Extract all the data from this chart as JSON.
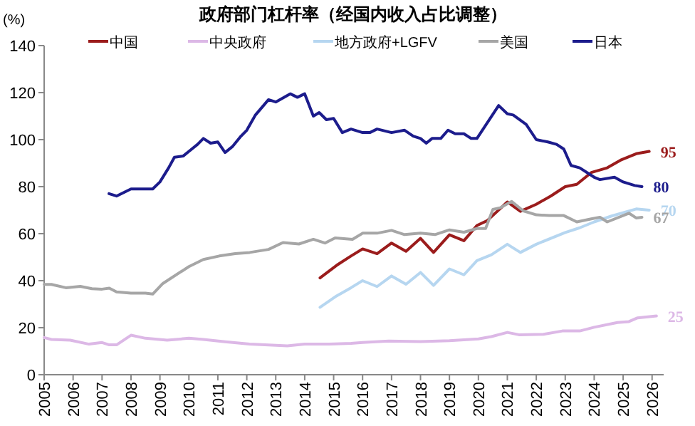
{
  "chart_data": {
    "type": "line",
    "title": "政府部门杠杆率（经国内收入占比调整）",
    "ylabel": "(%)",
    "xlim": [
      2005,
      2026.4
    ],
    "xticks": [
      2005,
      2006,
      2007,
      2008,
      2009,
      2010,
      2011,
      2012,
      2013,
      2014,
      2015,
      2016,
      2017,
      2018,
      2019,
      2020,
      2021,
      2022,
      2023,
      2024,
      2025,
      2026
    ],
    "ylim": [
      0,
      140
    ],
    "yticks": [
      0,
      20,
      40,
      60,
      80,
      100,
      120,
      140
    ],
    "grid": false,
    "legend": "top",
    "marker": "none",
    "line_style": "solid",
    "series": [
      {
        "name": "中国",
        "color": "#9b1c1c",
        "x": [
          2014.53,
          2015.1,
          2015.6,
          2016,
          2016.5,
          2017,
          2017.5,
          2018,
          2018.45,
          2019,
          2019.5,
          2019.95,
          2020.3,
          2021,
          2021.45,
          2022,
          2022.5,
          2023,
          2023.4,
          2023.9,
          2024.45,
          2024.95,
          2025.45,
          2025.9
        ],
        "values": [
          41.2,
          46.5,
          50.5,
          53.5,
          51.5,
          56,
          52.5,
          58,
          52,
          59.5,
          57,
          63.5,
          65.5,
          73.5,
          69.5,
          72.5,
          76,
          80,
          81,
          86,
          88,
          91.5,
          94,
          95
        ],
        "value_labels": [
          null,
          null,
          null,
          null,
          null,
          null,
          null,
          null,
          null,
          null,
          null,
          null,
          null,
          null,
          null,
          null,
          null,
          null,
          null,
          null,
          null,
          null,
          null,
          "95"
        ]
      },
      {
        "name": "中央政府",
        "color": "#dcb8e6",
        "x": [
          2005,
          2005.25,
          2005.9,
          2006.55,
          2007,
          2007.25,
          2007.5,
          2008,
          2008.5,
          2009.25,
          2010,
          2010.5,
          2011.25,
          2012.1,
          2013.4,
          2014,
          2014.85,
          2015.6,
          2016,
          2016.9,
          2018,
          2019,
          2020,
          2020.45,
          2021,
          2021.4,
          2022.25,
          2022.9,
          2023.5,
          2024,
          2024.8,
          2025.2,
          2025.5,
          2026.15
        ],
        "values": [
          15.8,
          15,
          14.7,
          13,
          13.7,
          12.7,
          12.7,
          16.8,
          15.5,
          14.7,
          15.5,
          15,
          14,
          13,
          12.3,
          13,
          13,
          13.3,
          13.7,
          14.3,
          14.1,
          14.5,
          15.2,
          16.2,
          18,
          17,
          17.2,
          18.6,
          18.6,
          20.2,
          22.2,
          22.6,
          24.2,
          25
        ],
        "value_labels": [
          null,
          null,
          null,
          null,
          null,
          null,
          null,
          null,
          null,
          null,
          null,
          null,
          null,
          null,
          null,
          null,
          null,
          null,
          null,
          null,
          null,
          null,
          null,
          null,
          null,
          null,
          null,
          null,
          null,
          null,
          null,
          null,
          null,
          "25"
        ]
      },
      {
        "name": "地方政府+LGFV",
        "color": "#b6d6f0",
        "x": [
          2014.53,
          2015.1,
          2015.6,
          2016,
          2016.5,
          2017,
          2017.5,
          2018,
          2018.45,
          2019,
          2019.5,
          2019.95,
          2020.45,
          2021,
          2021.45,
          2022,
          2023,
          2023.5,
          2024,
          2024.6,
          2025.45,
          2025.9
        ],
        "values": [
          28.7,
          33.5,
          37,
          40,
          37.5,
          42,
          38.5,
          43.5,
          38,
          45,
          42.5,
          48.5,
          51,
          55.5,
          52,
          55.5,
          60.5,
          62.5,
          65,
          67.5,
          70.5,
          70
        ],
        "value_labels": [
          null,
          null,
          null,
          null,
          null,
          null,
          null,
          null,
          null,
          null,
          null,
          null,
          null,
          null,
          null,
          null,
          null,
          null,
          null,
          null,
          null,
          "70"
        ]
      },
      {
        "name": "美国",
        "color": "#a6a6a6",
        "x": [
          2005,
          2005.25,
          2005.75,
          2006.25,
          2006.65,
          2007,
          2007.25,
          2007.5,
          2008,
          2008.5,
          2008.75,
          2009.1,
          2010,
          2010.5,
          2011.05,
          2011.6,
          2012.1,
          2012.75,
          2013.25,
          2013.8,
          2014.3,
          2014.7,
          2015.05,
          2015.65,
          2016,
          2016.5,
          2017,
          2017.45,
          2018,
          2018.5,
          2019,
          2019.5,
          2019.95,
          2020.25,
          2020.5,
          2020.75,
          2021.15,
          2021.55,
          2022,
          2022.45,
          2022.95,
          2023.4,
          2023.9,
          2024.2,
          2024.45,
          2025.2,
          2025.45,
          2025.65
        ],
        "values": [
          38.4,
          38.4,
          37,
          37.6,
          36.6,
          36.4,
          36.8,
          35.2,
          34.7,
          34.7,
          34.3,
          38.8,
          46,
          49,
          50.5,
          51.5,
          52,
          53.3,
          56.2,
          55.6,
          57.6,
          56,
          58.2,
          57.6,
          60.2,
          60.2,
          61.4,
          59.6,
          60.2,
          59.6,
          61.6,
          60.6,
          62.2,
          62.2,
          70.3,
          71,
          73.7,
          69.7,
          68,
          67.7,
          67.7,
          65,
          66.3,
          67,
          65,
          68.7,
          66.7,
          67
        ],
        "value_labels": [
          null,
          null,
          null,
          null,
          null,
          null,
          null,
          null,
          null,
          null,
          null,
          null,
          null,
          null,
          null,
          null,
          null,
          null,
          null,
          null,
          null,
          null,
          null,
          null,
          null,
          null,
          null,
          null,
          null,
          null,
          null,
          null,
          null,
          null,
          null,
          null,
          null,
          null,
          null,
          null,
          null,
          null,
          null,
          null,
          null,
          null,
          null,
          "67"
        ]
      },
      {
        "name": "日本",
        "color": "#1c1c8c",
        "x": [
          2007.24,
          2007.5,
          2008,
          2008.75,
          2009,
          2009.3,
          2009.5,
          2009.8,
          2010,
          2010.3,
          2010.5,
          2010.75,
          2011,
          2011.25,
          2011.5,
          2011.8,
          2012,
          2012.3,
          2012.75,
          2013,
          2013.5,
          2013.75,
          2014,
          2014.3,
          2014.5,
          2014.75,
          2015,
          2015.3,
          2015.6,
          2016,
          2016.25,
          2016.5,
          2017,
          2017.45,
          2017.75,
          2018,
          2018.2,
          2018.4,
          2018.7,
          2018.95,
          2019.2,
          2019.5,
          2019.75,
          2019.95,
          2020.7,
          2021,
          2021.2,
          2021.65,
          2022,
          2022.4,
          2022.7,
          2022.95,
          2023.2,
          2023.5,
          2024,
          2024.2,
          2024.7,
          2025,
          2025.4,
          2025.65
        ],
        "values": [
          77,
          76,
          79,
          79,
          82,
          88,
          92.5,
          93,
          95,
          98,
          100.5,
          98.5,
          99,
          94.5,
          97,
          101.5,
          104,
          110.5,
          117,
          116,
          119.5,
          118,
          119.5,
          110,
          111.5,
          108.5,
          109,
          103,
          104.5,
          103,
          103,
          104.5,
          103,
          104,
          101.5,
          100.5,
          98.5,
          100.5,
          100.5,
          104,
          102.5,
          102.5,
          100.5,
          100.5,
          114.5,
          111,
          110.5,
          106.5,
          100,
          99,
          98,
          96,
          89,
          88,
          84,
          83,
          84,
          82,
          80.5,
          80
        ],
        "value_labels": [
          null,
          null,
          null,
          null,
          null,
          null,
          null,
          null,
          null,
          null,
          null,
          null,
          null,
          null,
          null,
          null,
          null,
          null,
          null,
          null,
          null,
          null,
          null,
          null,
          null,
          null,
          null,
          null,
          null,
          null,
          null,
          null,
          null,
          null,
          null,
          null,
          null,
          null,
          null,
          null,
          null,
          null,
          null,
          null,
          null,
          null,
          null,
          null,
          null,
          null,
          null,
          null,
          null,
          null,
          null,
          null,
          null,
          null,
          null,
          "80"
        ]
      }
    ]
  }
}
